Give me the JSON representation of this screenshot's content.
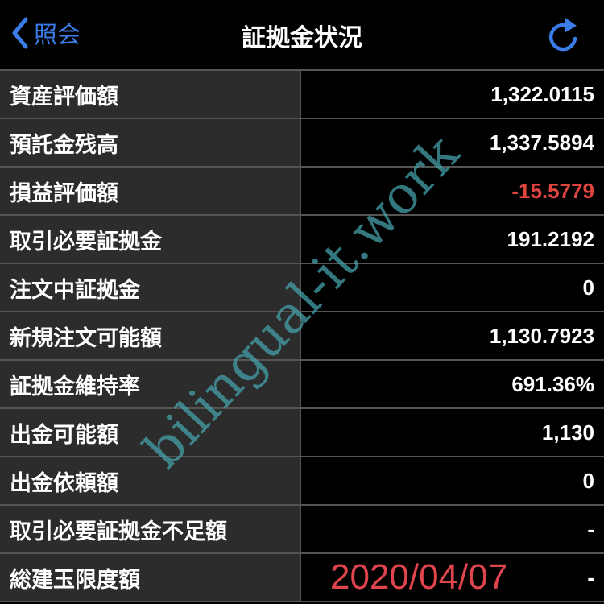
{
  "nav": {
    "back_label": "照会",
    "title": "証拠金状況",
    "accent": "#3b7de8"
  },
  "rows": [
    {
      "label": "資産評価額",
      "value": "1,322.0115"
    },
    {
      "label": "預託金残高",
      "value": "1,337.5894"
    },
    {
      "label": "損益評価額",
      "value": "-15.5779"
    },
    {
      "label": "取引必要証拠金",
      "value": "191.2192"
    },
    {
      "label": "注文中証拠金",
      "value": "0"
    },
    {
      "label": "新規注文可能額",
      "value": "1,130.7923"
    },
    {
      "label": "証拠金維持率",
      "value": "691.36%"
    },
    {
      "label": "出金可能額",
      "value": "1,130"
    },
    {
      "label": "出金依頼額",
      "value": "0"
    },
    {
      "label": "取引必要証拠金不足額",
      "value": "-"
    },
    {
      "label": "総建玉限度額",
      "value": "-"
    }
  ],
  "overlay_date": "2020/04/07",
  "watermark": "bilingual-it.work",
  "negative_color": "#e0443e"
}
